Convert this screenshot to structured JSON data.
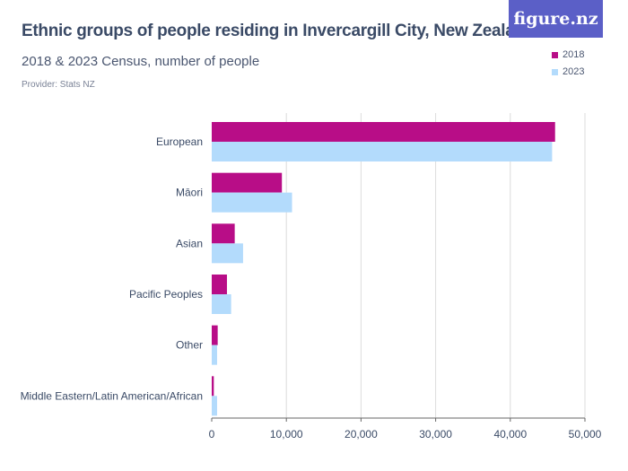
{
  "title": "Ethnic groups of people residing in Invercargill City, New Zealand",
  "subtitle": "2018 & 2023 Census, number of people",
  "provider": "Provider: Stats NZ",
  "logo": "figure.nz",
  "chart_data": {
    "type": "bar",
    "orientation": "horizontal",
    "categories": [
      "European",
      "Māori",
      "Asian",
      "Pacific Peoples",
      "Other",
      "Middle Eastern/Latin American/African"
    ],
    "series": [
      {
        "name": "2018",
        "color": "#b80d87",
        "values": [
          46000,
          9400,
          3080,
          2040,
          800,
          280
        ]
      },
      {
        "name": "2023",
        "color": "#b3dbfc",
        "values": [
          45600,
          10760,
          4200,
          2600,
          720,
          720
        ]
      }
    ],
    "xlim": [
      0,
      50000
    ],
    "xticks": [
      "0",
      "10,000",
      "20,000",
      "30,000",
      "40,000",
      "50,000"
    ],
    "grid": true,
    "legend": "top-right"
  }
}
